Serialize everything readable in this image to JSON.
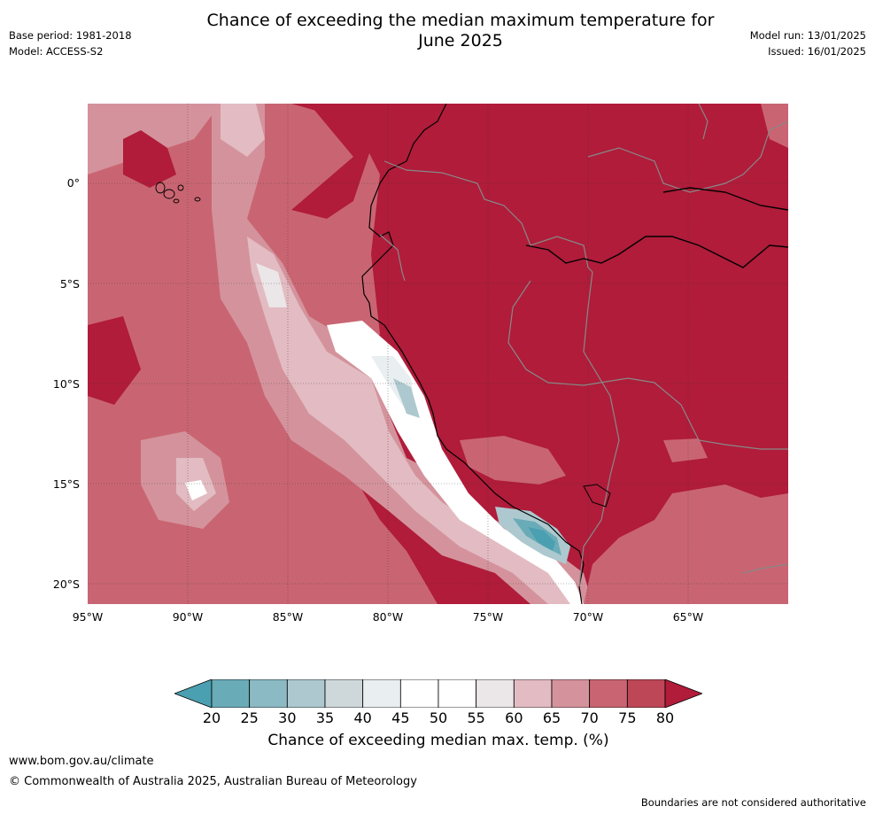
{
  "title_line1": "Chance of exceeding the median maximum temperature for",
  "title_line2": "June 2025",
  "meta_left": {
    "base_period": "Base period: 1981-2018",
    "model": "Model: ACCESS-S2"
  },
  "meta_right": {
    "model_run": "Model run: 13/01/2025",
    "issued": "Issued: 16/01/2025"
  },
  "map": {
    "lat_labels": [
      "0°",
      "5°S",
      "10°S",
      "15°S",
      "20°S"
    ],
    "lon_labels": [
      "95°W",
      "90°W",
      "85°W",
      "80°W",
      "75°W",
      "70°W",
      "65°W"
    ]
  },
  "colorbar": {
    "ticks": [
      "20",
      "25",
      "30",
      "35",
      "40",
      "45",
      "50",
      "55",
      "60",
      "65",
      "70",
      "75",
      "80"
    ],
    "colors": [
      "#4a9fb0",
      "#6aabb8",
      "#8cbac4",
      "#adc9cf",
      "#ced8db",
      "#e9eef0",
      "#ffffff",
      "#ffffff",
      "#ebe6e8",
      "#e2bcc2",
      "#d4939c",
      "#c96572",
      "#bd4756",
      "#b01c3a"
    ],
    "label": "Chance of exceeding median max. temp. (%)"
  },
  "footer": {
    "url": "www.bom.gov.au/climate",
    "copyright": "© Commonwealth of Australia 2025, Australian Bureau of Meteorology",
    "disclaimer": "Boundaries are not considered authoritative"
  }
}
